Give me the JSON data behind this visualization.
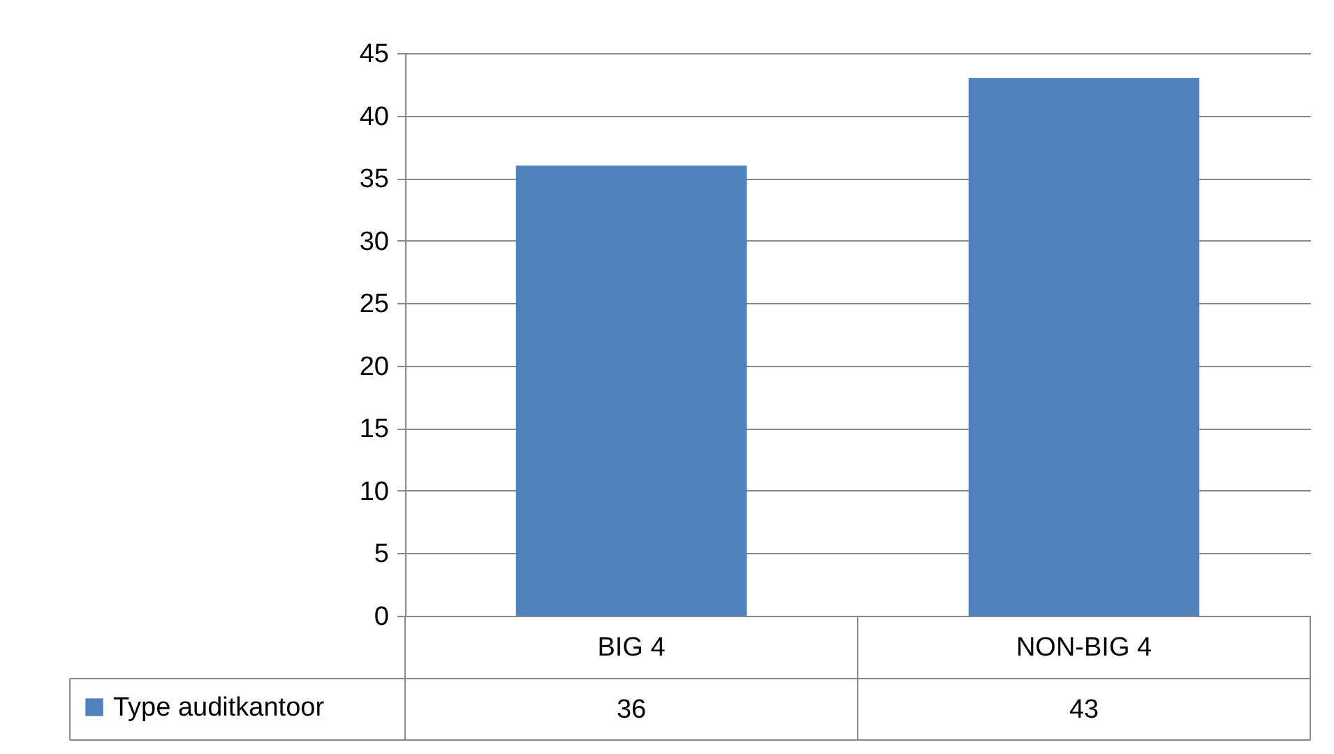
{
  "chart_data": {
    "type": "bar",
    "categories": [
      "BIG 4",
      "NON-BIG 4"
    ],
    "series": [
      {
        "name": "Type auditkantoor",
        "color": "#4f81bd",
        "values": [
          36,
          43
        ]
      }
    ],
    "ylim": [
      0,
      45
    ],
    "yticks": [
      0,
      5,
      10,
      15,
      20,
      25,
      30,
      35,
      40,
      45
    ],
    "grid": "y",
    "legend": "bottom",
    "data_labels": true
  }
}
